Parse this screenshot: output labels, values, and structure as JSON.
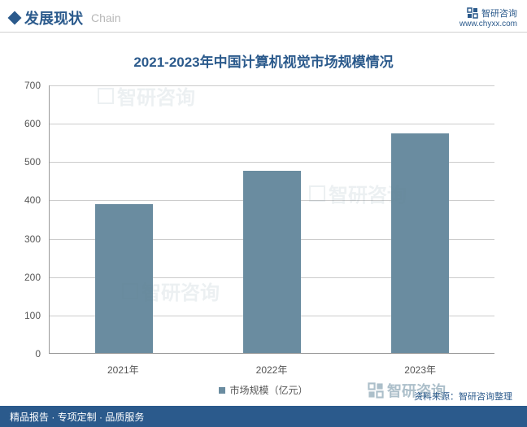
{
  "header": {
    "title": "发展现状",
    "subtitle": "Chain",
    "brand": "智研咨询",
    "brand_url": "www.chyxx.com"
  },
  "chart": {
    "type": "bar",
    "title": "2021-2023年中国计算机视觉市场规模情况",
    "categories": [
      "2021年",
      "2022年",
      "2023年"
    ],
    "values": [
      388,
      475,
      572
    ],
    "bar_color": "#6a8ca0",
    "bar_width_pct": 13,
    "ylim": [
      0,
      700
    ],
    "ytick_step": 100,
    "grid_color": "#cccccc",
    "axis_color": "#999999",
    "background_color": "#ffffff",
    "legend_label": "市场规模（亿元）",
    "label_color": "#555555",
    "label_fontsize": 12,
    "title_color": "#2b5a8c",
    "title_fontsize": 17
  },
  "source": {
    "label": "资料来源：智研咨询整理"
  },
  "footer": {
    "text": "精品报告 · 专项定制 · 品质服务"
  },
  "watermark": {
    "text": "智研咨询"
  },
  "brand_logo": {
    "text": "智研咨询"
  }
}
